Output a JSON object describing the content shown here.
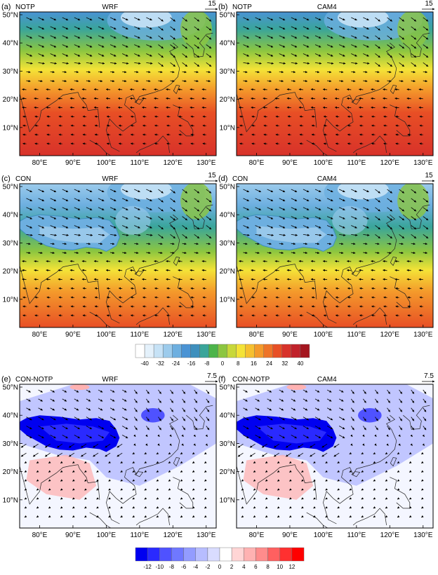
{
  "panels": [
    {
      "id": "a",
      "label": "(a)",
      "case": "NOTP",
      "model": "WRF",
      "ref": "15",
      "field": "abs",
      "lat_ticks": [
        "50°N",
        "40°N",
        "30°N",
        "20°N",
        "10°N"
      ],
      "lon_ticks": [
        "80°E",
        "90°E",
        "100°E",
        "110°E",
        "120°E",
        "130°E"
      ]
    },
    {
      "id": "b",
      "label": "(b)",
      "case": "NOTP",
      "model": "CAM4",
      "ref": "15",
      "field": "abs",
      "lat_ticks": [
        "50°N",
        "40°N",
        "30°N",
        "20°N",
        "10°N"
      ],
      "lon_ticks": [
        "80°E",
        "90°E",
        "100°E",
        "110°E",
        "120°E",
        "130°E"
      ]
    },
    {
      "id": "c",
      "label": "(c)",
      "case": "CON",
      "model": "WRF",
      "ref": "15",
      "field": "con",
      "lat_ticks": [
        "50°N",
        "40°N",
        "30°N",
        "20°N",
        "10°N"
      ],
      "lon_ticks": [
        "80°E",
        "90°E",
        "100°E",
        "110°E",
        "120°E",
        "130°E"
      ]
    },
    {
      "id": "d",
      "label": "(d)",
      "case": "CON",
      "model": "CAM4",
      "ref": "15",
      "field": "con",
      "lat_ticks": [
        "50°N",
        "40°N",
        "30°N",
        "20°N",
        "10°N"
      ],
      "lon_ticks": [
        "80°E",
        "90°E",
        "100°E",
        "110°E",
        "120°E",
        "130°E"
      ]
    },
    {
      "id": "e",
      "label": "(e)",
      "case": "CON-NOTP",
      "model": "WRF",
      "ref": "7.5",
      "field": "diff",
      "lat_ticks": [
        "50°N",
        "40°N",
        "30°N",
        "20°N",
        "10°N"
      ],
      "lon_ticks": [
        "80°E",
        "90°E",
        "100°E",
        "110°E",
        "120°E",
        "130°E"
      ]
    },
    {
      "id": "f",
      "label": "(f)",
      "case": "CON-NOTP",
      "model": "CAM4",
      "ref": "7.5",
      "field": "diff",
      "lat_ticks": [
        "50°N",
        "40°N",
        "30°N",
        "20°N",
        "10°N"
      ],
      "lon_ticks": [
        "80°E",
        "90°E",
        "100°E",
        "110°E",
        "120°E",
        "130°E"
      ]
    }
  ],
  "colorbar_abs": {
    "labels": [
      "-40",
      "-32",
      "-24",
      "-16",
      "-8",
      "0",
      "8",
      "16",
      "24",
      "32",
      "40"
    ],
    "colors": [
      "#ffffff",
      "#e4f1fb",
      "#c6e2f6",
      "#9ccbec",
      "#6dafe0",
      "#4a93d4",
      "#3e8fbd",
      "#3aa59a",
      "#4cb44a",
      "#8cc640",
      "#c8d83a",
      "#f4e337",
      "#f6c02f",
      "#f49a2b",
      "#ee7428",
      "#e84f25",
      "#d8322a",
      "#c1222b",
      "#a4161f"
    ]
  },
  "colorbar_diff": {
    "labels": [
      "-12",
      "-10",
      "-8",
      "-6",
      "-4",
      "-2",
      "0",
      "2",
      "4",
      "6",
      "8",
      "10",
      "12"
    ],
    "colors": [
      "#0000f0",
      "#2a2aff",
      "#4f52ff",
      "#6f78ff",
      "#939cff",
      "#b7bdff",
      "#d9dcff",
      "#ffffff",
      "#ffd5d5",
      "#ffb2b2",
      "#ff8c8c",
      "#ff6060",
      "#ff3030",
      "#ff0000"
    ]
  }
}
